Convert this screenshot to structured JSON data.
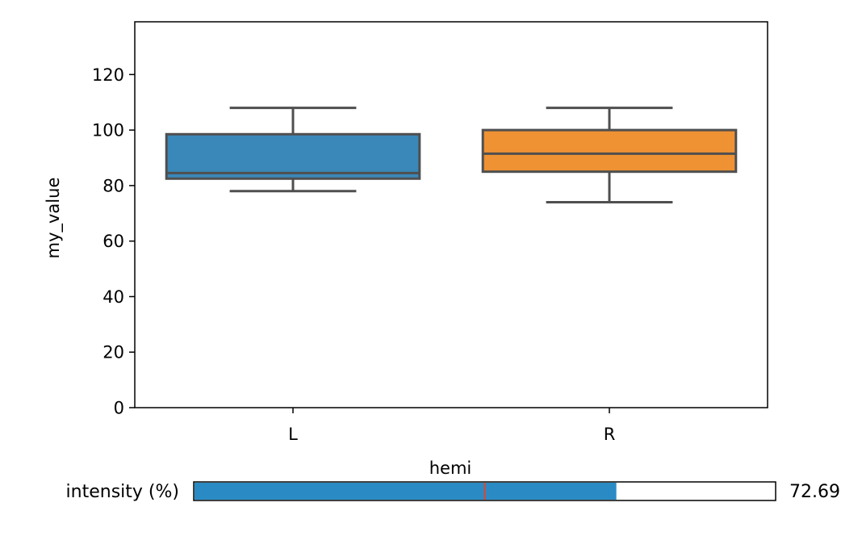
{
  "chart_data": {
    "type": "box",
    "xlabel": "hemi",
    "ylabel": "my_value",
    "ylim": [
      0,
      139
    ],
    "yticks": [
      0,
      20,
      40,
      60,
      80,
      100,
      120
    ],
    "categories": [
      "L",
      "R"
    ],
    "boxes": [
      {
        "category": "L",
        "whisker_low": 78,
        "q1": 82.5,
        "median": 84.5,
        "q3": 98.5,
        "whisker_high": 108,
        "color": "#3a87b9"
      },
      {
        "category": "R",
        "whisker_low": 74,
        "q1": 85,
        "median": 91.5,
        "q3": 100,
        "whisker_high": 108,
        "color": "#ef9234"
      }
    ],
    "grid": false
  },
  "slider": {
    "label": "intensity (%)",
    "value_text": "72.69",
    "fill_fraction": 0.7269,
    "marker_fraction": 0.5,
    "fill_color": "#2a8bc4",
    "marker_color": "#e8402a"
  }
}
